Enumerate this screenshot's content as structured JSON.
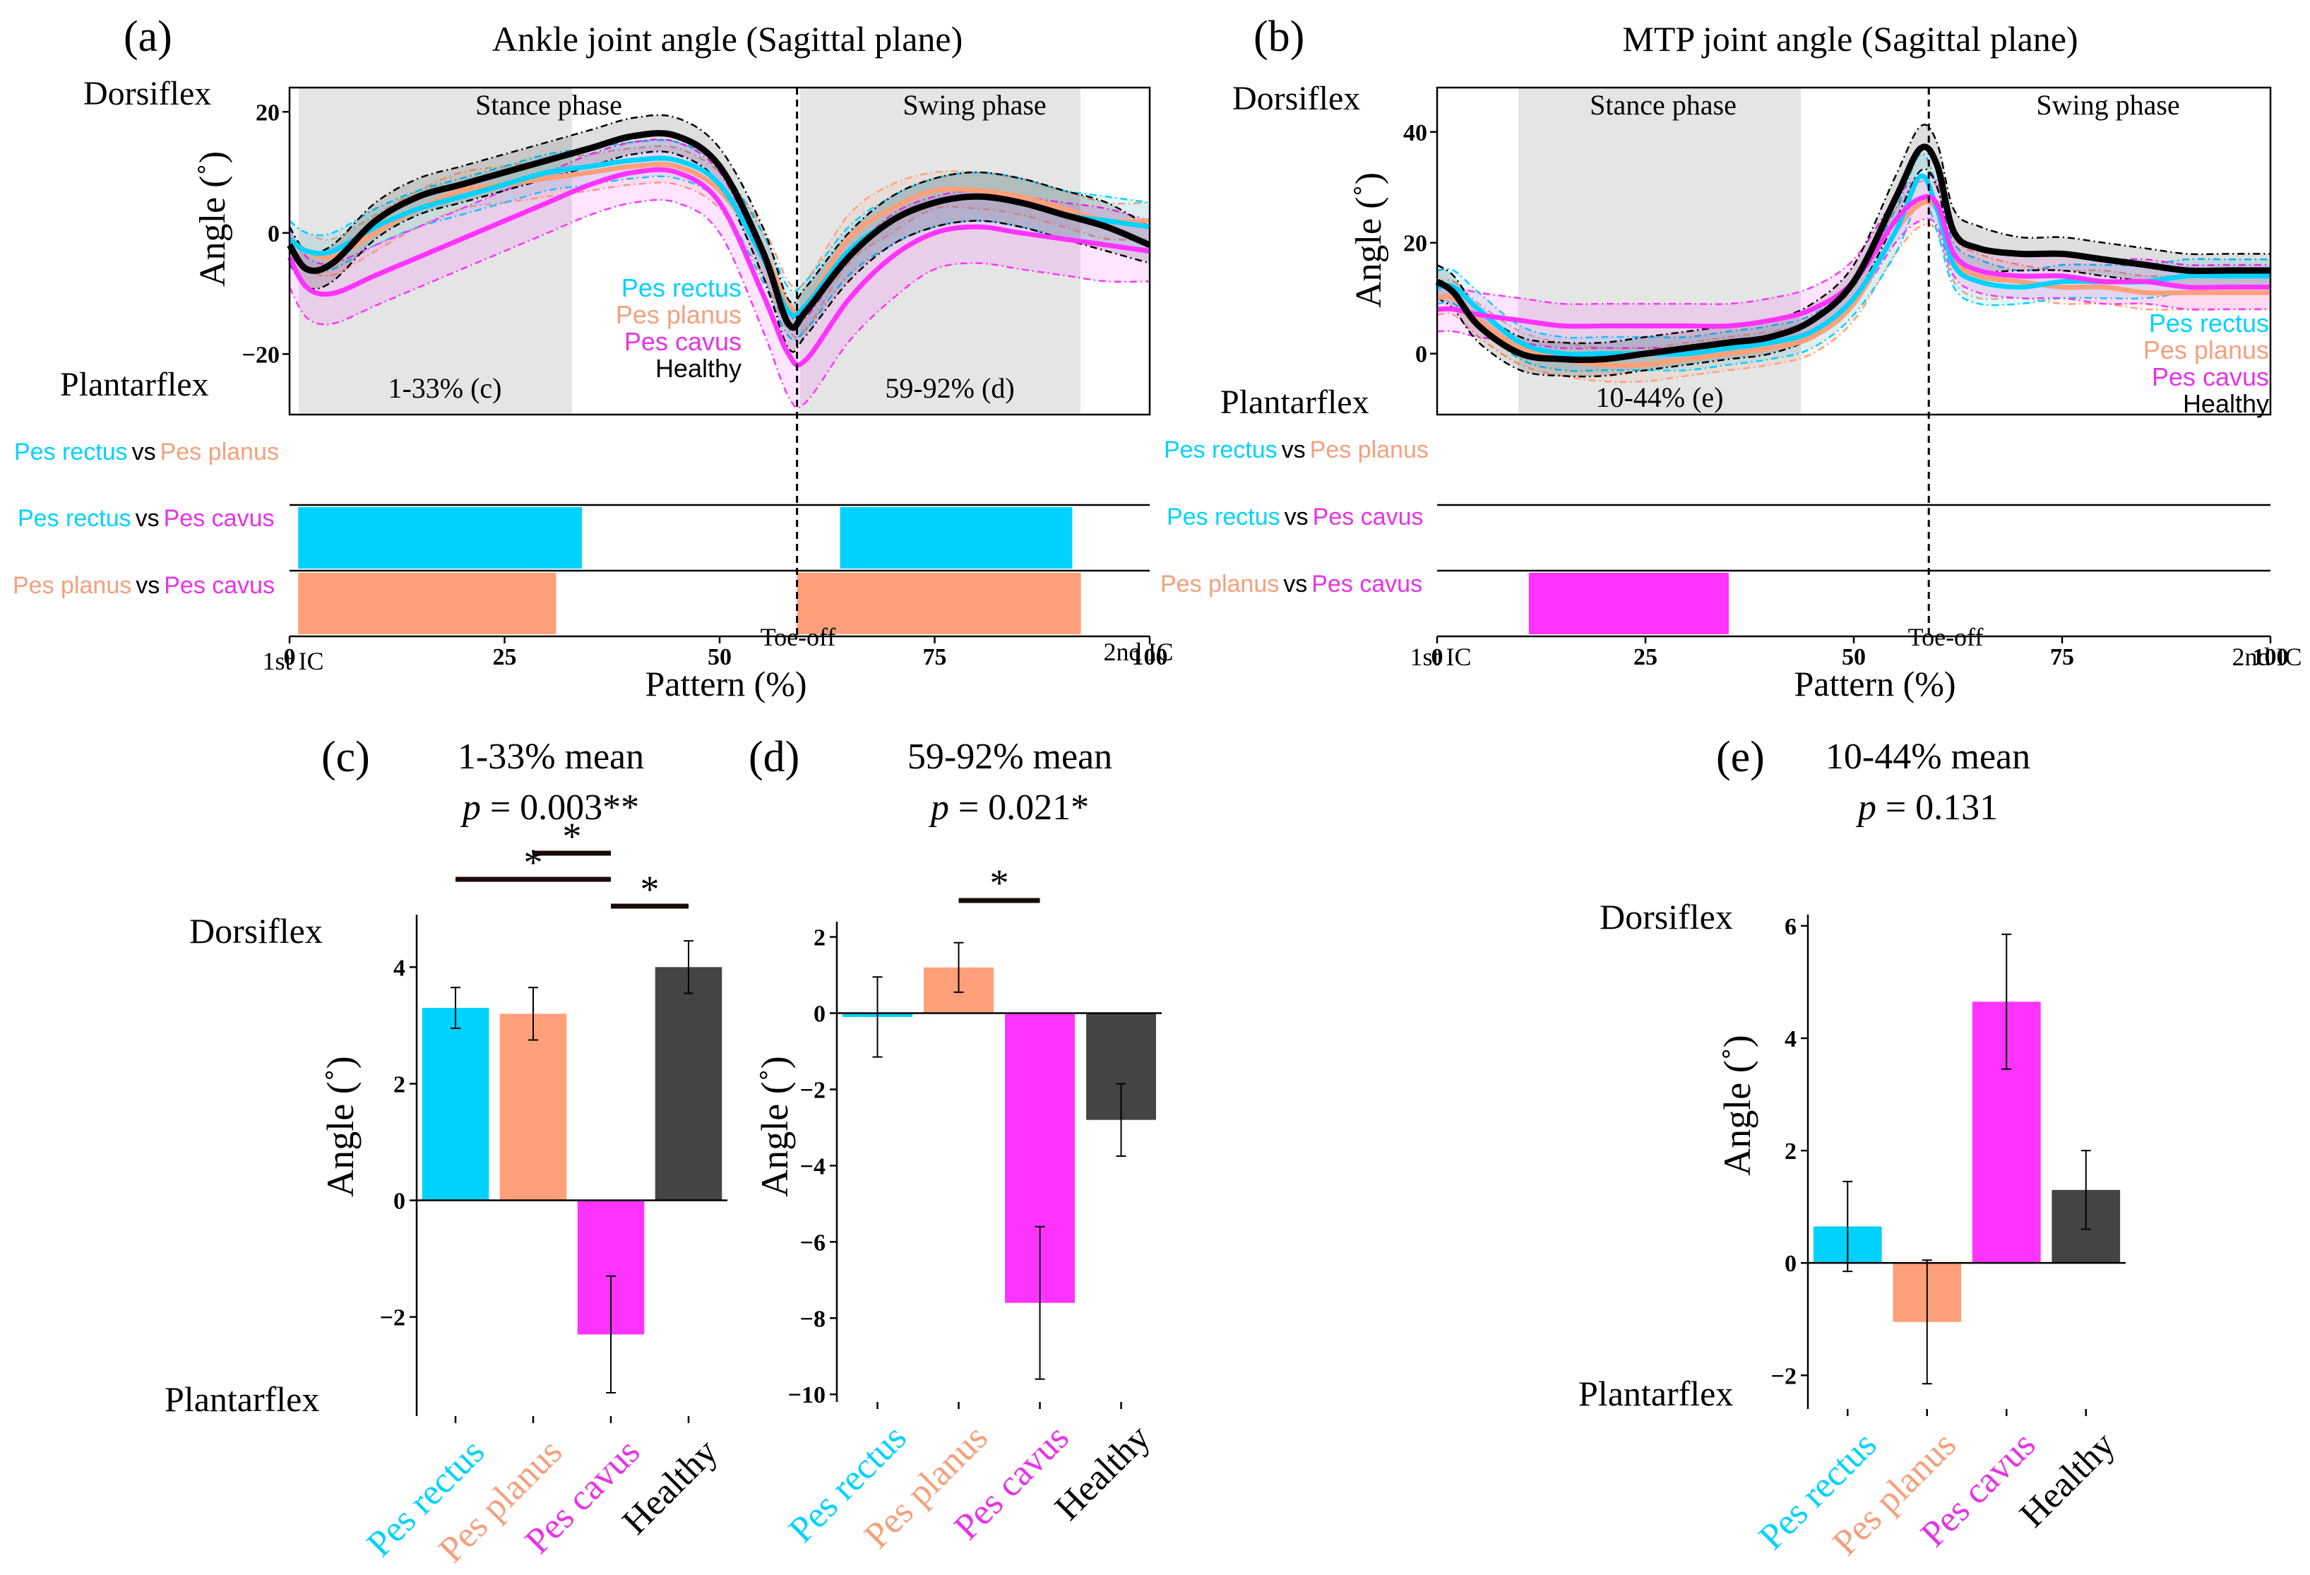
{
  "colors": {
    "rectus": "#00d2ff",
    "planus": "#ffa07a",
    "cavus": "#ff33ff",
    "healthy": "#000000",
    "healthy_bar": "#444444",
    "phase_shade": "#e5e5e5",
    "planus_text": "#f4a07c",
    "cavus_text": "#e633e6"
  },
  "panels": {
    "a": {
      "letter": "(a)",
      "title": "Ankle joint angle (Sagittal plane)",
      "dorsiflex": "Dorsiflex",
      "plantarflex": "Plantarflex",
      "ylabel": "Angle (˚)",
      "stance": "Stance phase",
      "swing": "Swing phase",
      "range1": "1-33% (c)",
      "range2": "59-92% (d)",
      "toeoff": "Toe-off",
      "ic1": "1st IC",
      "ic2": "2nd IC",
      "xlabel": "Pattern (%)",
      "legend": [
        "Pes rectus",
        "Pes planus",
        "Pes cavus",
        "Healthy"
      ],
      "comparisons": [
        {
          "a": "Pes rectus",
          "vs": "vs",
          "b": "Pes planus"
        },
        {
          "a": "Pes rectus",
          "vs": "vs",
          "b": "Pes cavus"
        },
        {
          "a": "Pes planus",
          "vs": "vs",
          "b": "Pes cavus"
        }
      ]
    },
    "b": {
      "letter": "(b)",
      "title": "MTP joint angle (Sagittal plane)",
      "dorsiflex": "Dorsiflex",
      "plantarflex": "Plantarflex",
      "ylabel": "Angle (˚)",
      "stance": "Stance phase",
      "swing": "Swing phase",
      "range1": "10-44% (e)",
      "toeoff": "Toe-off",
      "ic1": "1st IC",
      "ic2": "2nd IC",
      "xlabel": "Pattern (%)",
      "legend": [
        "Pes rectus",
        "Pes planus",
        "Pes cavus",
        "Healthy"
      ],
      "comparisons": [
        {
          "a": "Pes rectus",
          "vs": "vs",
          "b": "Pes planus"
        },
        {
          "a": "Pes rectus",
          "vs": "vs",
          "b": "Pes cavus"
        },
        {
          "a": "Pes planus",
          "vs": "vs",
          "b": "Pes cavus"
        }
      ]
    },
    "c": {
      "letter": "(c)",
      "title": "1-33% mean",
      "p_label": "p",
      "p_value": " = 0.003**",
      "dorsiflex": "Dorsiflex",
      "plantarflex": "Plantarflex",
      "ylabel": "Angle (˚)",
      "star": "*"
    },
    "d": {
      "letter": "(d)",
      "title": "59-92% mean",
      "p_label": "p",
      "p_value": " = 0.021*",
      "ylabel": "Angle (˚)",
      "star": "*"
    },
    "e": {
      "letter": "(e)",
      "title": "10-44% mean",
      "p_label": "p",
      "p_value": " = 0.131",
      "dorsiflex": "Dorsiflex",
      "plantarflex": "Plantarflex",
      "ylabel": "Angle (˚)"
    }
  },
  "chart_data": [
    {
      "id": "a",
      "type": "line",
      "title": "Ankle joint angle (Sagittal plane)",
      "xlabel": "Pattern (%)",
      "ylabel": "Angle (˚)",
      "xlim": [
        0,
        100
      ],
      "ylim": [
        -30,
        24
      ],
      "xticks": [
        0,
        25,
        50,
        75,
        100
      ],
      "yticks": [
        -20,
        0,
        20
      ],
      "x": [
        0,
        2,
        5,
        10,
        15,
        20,
        25,
        30,
        35,
        40,
        45,
        50,
        55,
        58,
        60,
        65,
        70,
        75,
        80,
        85,
        90,
        95,
        100
      ],
      "series": [
        {
          "name": "Pes rectus",
          "values": [
            -1,
            -3,
            -3,
            1,
            4,
            6,
            8,
            10,
            11,
            12,
            12,
            8,
            -4,
            -13,
            -12,
            -3,
            2,
            5,
            6,
            5,
            3,
            2,
            1
          ],
          "sd": [
            3,
            3,
            3,
            3,
            3,
            3,
            3,
            3,
            3,
            3,
            3,
            3,
            4,
            4,
            4,
            4,
            4,
            4,
            4,
            4,
            4,
            4,
            4
          ]
        },
        {
          "name": "Pes planus",
          "values": [
            -1,
            -3,
            -4,
            0,
            4,
            7,
            8,
            9,
            10,
            11,
            11,
            7,
            -3,
            -12,
            -12,
            -1,
            4,
            7,
            7,
            6,
            4,
            2,
            2
          ],
          "sd": [
            3,
            3,
            3,
            3,
            3,
            3,
            3,
            3,
            3,
            3,
            3,
            3,
            4,
            4,
            4,
            4,
            4,
            3,
            3,
            3,
            3,
            3,
            3
          ]
        },
        {
          "name": "Pes cavus",
          "values": [
            -4,
            -9,
            -10,
            -7,
            -4,
            -1,
            2,
            5,
            8,
            10,
            10,
            5,
            -10,
            -20,
            -21,
            -11,
            -4,
            0,
            1,
            0,
            -1,
            -2,
            -3
          ],
          "sd": [
            5,
            5,
            5,
            5,
            5,
            5,
            5,
            5,
            5,
            5,
            5,
            5,
            6,
            7,
            7,
            7,
            7,
            6,
            6,
            6,
            6,
            6,
            5
          ]
        },
        {
          "name": "Healthy",
          "values": [
            -2,
            -6,
            -5,
            2,
            6,
            8,
            10,
            12,
            14,
            16,
            16,
            11,
            -3,
            -15,
            -13,
            -4,
            2,
            5,
            6,
            5,
            3,
            1,
            -2
          ],
          "sd": [
            3,
            3,
            3,
            3,
            3,
            3,
            3,
            3,
            3,
            3,
            3,
            3,
            4,
            4,
            4,
            4,
            4,
            4,
            4,
            4,
            4,
            4,
            3
          ]
        }
      ],
      "phases": [
        {
          "label": "Stance phase",
          "range": [
            1,
            33
          ]
        },
        {
          "label": "Swing phase",
          "range": [
            59,
            92
          ]
        }
      ],
      "toe_off": 59,
      "significance": [
        {
          "comparison": "Pes rectus vs Pes planus",
          "segments": []
        },
        {
          "comparison": "Pes rectus vs Pes cavus",
          "color": "rectus",
          "segments": [
            [
              1,
              34
            ],
            [
              64,
              91
            ]
          ]
        },
        {
          "comparison": "Pes planus vs Pes cavus",
          "color": "planus",
          "segments": [
            [
              1,
              31
            ],
            [
              59,
              92
            ]
          ]
        }
      ]
    },
    {
      "id": "b",
      "type": "line",
      "title": "MTP joint angle (Sagittal plane)",
      "xlabel": "Pattern (%)",
      "ylabel": "Angle (˚)",
      "xlim": [
        0,
        100
      ],
      "ylim": [
        -11,
        48
      ],
      "xticks": [
        0,
        25,
        50,
        75,
        100
      ],
      "yticks": [
        0,
        20,
        40
      ],
      "x": [
        0,
        2,
        5,
        10,
        15,
        20,
        25,
        30,
        35,
        40,
        45,
        50,
        55,
        58,
        60,
        62,
        65,
        70,
        75,
        80,
        85,
        90,
        95,
        100
      ],
      "series": [
        {
          "name": "Pes rectus",
          "values": [
            12,
            12,
            8,
            2,
            0,
            0,
            0,
            0,
            1,
            2,
            4,
            10,
            22,
            32,
            26,
            16,
            13,
            12,
            13,
            13,
            13,
            14,
            14,
            14
          ],
          "sd": [
            3,
            3,
            3,
            3,
            3,
            3,
            3,
            3,
            3,
            3,
            3,
            3,
            4,
            4,
            4,
            4,
            4,
            3,
            3,
            3,
            3,
            3,
            3,
            3
          ]
        },
        {
          "name": "Pes planus",
          "values": [
            10,
            10,
            6,
            1,
            -1,
            -2,
            -2,
            -1,
            0,
            1,
            3,
            9,
            22,
            27,
            26,
            17,
            14,
            13,
            12,
            12,
            11,
            11,
            11,
            11
          ],
          "sd": [
            3,
            3,
            3,
            3,
            3,
            3,
            3,
            3,
            3,
            3,
            3,
            3,
            4,
            4,
            4,
            4,
            4,
            3,
            3,
            3,
            3,
            3,
            3,
            3
          ]
        },
        {
          "name": "Pes cavus",
          "values": [
            8,
            8,
            7,
            6,
            5,
            5,
            5,
            5,
            5,
            6,
            8,
            13,
            24,
            28,
            27,
            18,
            15,
            14,
            14,
            13,
            13,
            12,
            12,
            12
          ],
          "sd": [
            4,
            4,
            4,
            4,
            4,
            4,
            4,
            4,
            4,
            4,
            4,
            4,
            4,
            4,
            4,
            4,
            4,
            4,
            4,
            4,
            4,
            4,
            4,
            4
          ]
        },
        {
          "name": "Healthy",
          "values": [
            13,
            11,
            5,
            0,
            -1,
            -1,
            0,
            1,
            2,
            3,
            6,
            13,
            28,
            37,
            34,
            22,
            19,
            18,
            18,
            17,
            16,
            15,
            15,
            15
          ],
          "sd": [
            3,
            3,
            3,
            3,
            3,
            3,
            3,
            3,
            3,
            3,
            3,
            3,
            4,
            4,
            4,
            4,
            4,
            3,
            3,
            3,
            3,
            3,
            3,
            3
          ]
        }
      ],
      "phases": [
        {
          "label": "Stance phase",
          "range": [
            10,
            44
          ]
        }
      ],
      "toe_off": 59,
      "significance": [
        {
          "comparison": "Pes rectus vs Pes planus",
          "segments": []
        },
        {
          "comparison": "Pes rectus vs Pes cavus",
          "segments": []
        },
        {
          "comparison": "Pes planus vs Pes cavus",
          "color": "cavus",
          "segments": [
            [
              11,
              35
            ]
          ]
        }
      ]
    },
    {
      "id": "c",
      "type": "bar",
      "title": "1-33% mean",
      "ylabel": "Angle (˚)",
      "categories": [
        "Pes rectus",
        "Pes planus",
        "Pes cavus",
        "Healthy"
      ],
      "values": [
        3.3,
        3.2,
        -2.3,
        4.0
      ],
      "errors": [
        0.35,
        0.45,
        1.0,
        0.45
      ],
      "ylim": [
        -3.7,
        4.9
      ],
      "yticks": [
        -2,
        0,
        2,
        4
      ],
      "significance_brackets": [
        [
          "Pes planus",
          "Pes cavus"
        ],
        [
          "Pes rectus",
          "Pes cavus"
        ],
        [
          "Pes cavus",
          "Healthy"
        ]
      ]
    },
    {
      "id": "d",
      "type": "bar",
      "title": "59-92% mean",
      "ylabel": "Angle (˚)",
      "categories": [
        "Pes rectus",
        "Pes planus",
        "Pes cavus",
        "Healthy"
      ],
      "values": [
        -0.1,
        1.2,
        -7.6,
        -2.8
      ],
      "errors": [
        1.05,
        0.65,
        2.0,
        0.95
      ],
      "ylim": [
        -10.2,
        2.4
      ],
      "yticks": [
        -10,
        -8,
        -6,
        -4,
        -2,
        0,
        2
      ],
      "significance_brackets": [
        [
          "Pes planus",
          "Pes cavus"
        ]
      ]
    },
    {
      "id": "e",
      "type": "bar",
      "title": "10-44% mean",
      "ylabel": "Angle (˚)",
      "categories": [
        "Pes rectus",
        "Pes planus",
        "Pes cavus",
        "Healthy"
      ],
      "values": [
        0.65,
        -1.05,
        4.65,
        1.3
      ],
      "errors": [
        0.8,
        1.1,
        1.2,
        0.7
      ],
      "ylim": [
        -2.6,
        6.2
      ],
      "yticks": [
        -2,
        0,
        2,
        4,
        6
      ],
      "significance_brackets": []
    }
  ]
}
